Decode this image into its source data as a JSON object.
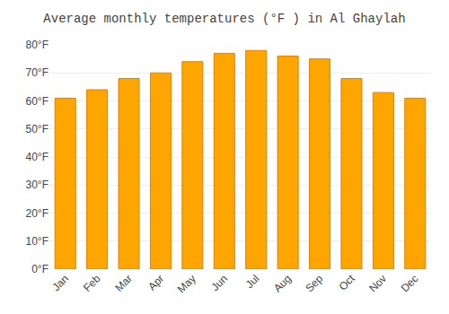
{
  "chart_data": {
    "type": "bar",
    "title": "Average monthly temperatures (°F ) in Al Ghaylah",
    "categories": [
      "Jan",
      "Feb",
      "Mar",
      "Apr",
      "May",
      "Jun",
      "Jul",
      "Aug",
      "Sep",
      "Oct",
      "Nov",
      "Dec"
    ],
    "values": [
      61,
      64,
      68,
      70,
      74,
      77,
      78,
      76,
      75,
      68,
      63,
      61
    ],
    "color": "#FFA500",
    "ylim": [
      0,
      80
    ],
    "yticks": [
      {
        "value": 0,
        "label": "0°F"
      },
      {
        "value": 10,
        "label": "10°F"
      },
      {
        "value": 20,
        "label": "20°F"
      },
      {
        "value": 30,
        "label": "30°F"
      },
      {
        "value": 40,
        "label": "40°F"
      },
      {
        "value": 50,
        "label": "50°F"
      },
      {
        "value": 60,
        "label": "60°F"
      },
      {
        "value": 70,
        "label": "70°F"
      },
      {
        "value": 80,
        "label": "80°F"
      }
    ],
    "grid": true
  }
}
